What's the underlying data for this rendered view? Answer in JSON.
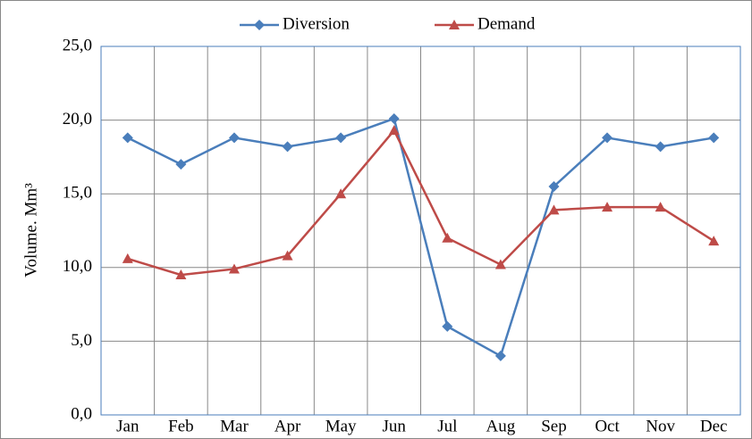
{
  "chart_data": {
    "type": "line",
    "y_label": "Volume. Mm³",
    "categories": [
      "Jan",
      "Feb",
      "Mar",
      "Apr",
      "May",
      "Jun",
      "Jul",
      "Aug",
      "Sep",
      "Oct",
      "Nov",
      "Dec"
    ],
    "series": [
      {
        "name": "Diversion",
        "color": "#4a7ebb",
        "marker": "diamond",
        "values": [
          18.8,
          17.0,
          18.8,
          18.2,
          18.8,
          20.1,
          6.0,
          4.0,
          15.5,
          18.8,
          18.2,
          18.8
        ]
      },
      {
        "name": "Demand",
        "color": "#be4b48",
        "marker": "triangle",
        "values": [
          10.6,
          9.5,
          9.9,
          10.8,
          15.0,
          19.3,
          12.0,
          10.2,
          13.9,
          14.1,
          14.1,
          11.8
        ]
      }
    ],
    "ylim": [
      0,
      25
    ],
    "yticks": [
      {
        "value": 0,
        "label": "0,0"
      },
      {
        "value": 5,
        "label": "5,0"
      },
      {
        "value": 10,
        "label": "10,0"
      },
      {
        "value": 15,
        "label": "15,0"
      },
      {
        "value": 20,
        "label": "20,0"
      },
      {
        "value": 25,
        "label": "25,0"
      }
    ],
    "grid": true,
    "legend": "top"
  }
}
